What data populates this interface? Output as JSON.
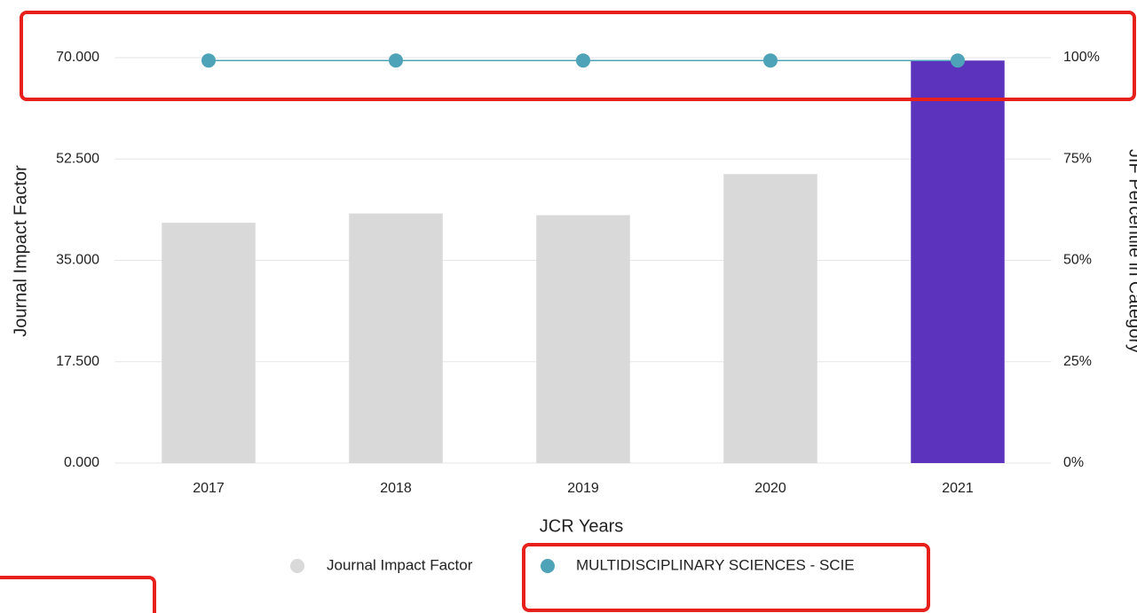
{
  "chart_data": {
    "type": "bar_line",
    "xlabel": "JCR Years",
    "ylabel": "Journal Impact Factor",
    "y2label": "JIF Percentile in Category",
    "categories": [
      "2017",
      "2018",
      "2019",
      "2020",
      "2021"
    ],
    "series": [
      {
        "name": "Journal Impact Factor",
        "type": "bar",
        "axis": "y",
        "color": "#d9d9d9",
        "colors": [
          "#d9d9d9",
          "#d9d9d9",
          "#d9d9d9",
          "#d9d9d9",
          "#5c33bd"
        ],
        "values": [
          41.5,
          43.1,
          42.8,
          49.9,
          69.5
        ]
      },
      {
        "name": "MULTIDISCIPLINARY SCIENCES - SCIE",
        "type": "line",
        "axis": "y2",
        "color": "#4fa3b8",
        "values": [
          99.3,
          99.3,
          99.3,
          99.3,
          99.3
        ]
      }
    ],
    "ylim": [
      0,
      70
    ],
    "yticks": [
      {
        "value": 0,
        "label": "0.000"
      },
      {
        "value": 17.5,
        "label": "17.500"
      },
      {
        "value": 35,
        "label": "35.000"
      },
      {
        "value": 52.5,
        "label": "52.500"
      },
      {
        "value": 70,
        "label": "70.000"
      }
    ],
    "y2lim": [
      0,
      100
    ],
    "y2ticks": [
      {
        "value": 0,
        "label": "0%"
      },
      {
        "value": 25,
        "label": "25%"
      },
      {
        "value": 50,
        "label": "50%"
      },
      {
        "value": 75,
        "label": "75%"
      },
      {
        "value": 100,
        "label": "100%"
      }
    ],
    "grid": true
  }
}
